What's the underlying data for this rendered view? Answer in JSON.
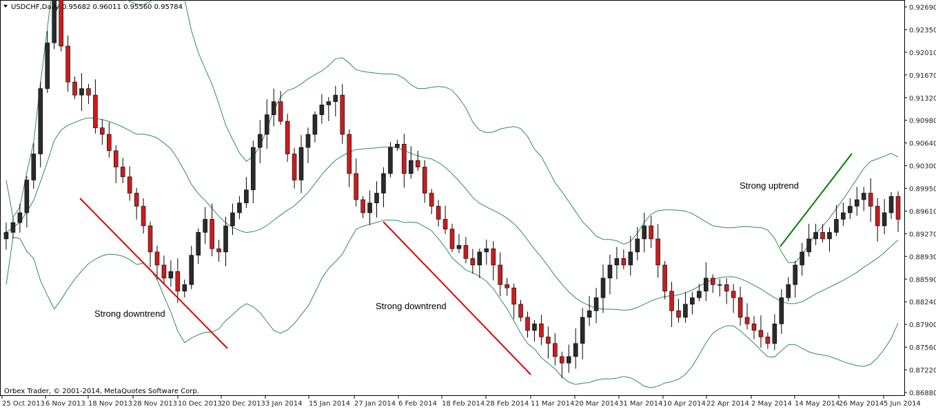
{
  "header": {
    "symbol": "USDCHF,Daily",
    "ohlc": "0.95682 0.96011 0.95560 0.95784"
  },
  "footer": {
    "copyright": "Orbex Trader, © 2001-2014, MetaQuotes Software Corp."
  },
  "chart_data": {
    "type": "candlestick",
    "ylim": [
      0.8685,
      0.9275
    ],
    "y_ticks": [
      "0.92690",
      "0.92350",
      "0.92010",
      "0.91670",
      "0.91320",
      "0.90980",
      "0.90640",
      "0.90300",
      "0.89950",
      "0.89610",
      "0.89270",
      "0.88930",
      "0.88590",
      "0.88240",
      "0.87900",
      "0.87560",
      "0.87220",
      "0.86880"
    ],
    "x_ticks": [
      "25 Oct 2013",
      "6 Nov 2013",
      "18 Nov 2013",
      "28 Nov 2013",
      "10 Dec 2013",
      "20 Dec 2013",
      "3 Jan 2014",
      "15 Jan 2014",
      "27 Jan 2014",
      "6 Feb 2014",
      "18 Feb 2014",
      "28 Feb 2014",
      "11 Mar 2014",
      "20 Mar 2014",
      "31 Mar 2014",
      "10 Apr 2014",
      "22 Apr 2014",
      "2 May 2014",
      "14 May 2014",
      "26 May 2014",
      "5 Jun 2014"
    ],
    "up_color": "#2b2b2b",
    "down_color": "#c81e1e",
    "band_color": "#2e8b57",
    "close_path": [
      0.893,
      0.8945,
      0.896,
      0.901,
      0.905,
      0.915,
      0.922,
      0.93,
      0.9215,
      0.916,
      0.914,
      0.915,
      0.914,
      0.909,
      0.908,
      0.9055,
      0.903,
      0.9015,
      0.899,
      0.897,
      0.894,
      0.89,
      0.888,
      0.886,
      0.887,
      0.884,
      0.885,
      0.8895,
      0.893,
      0.895,
      0.8905,
      0.89,
      0.894,
      0.896,
      0.8975,
      0.8995,
      0.906,
      0.908,
      0.911,
      0.913,
      0.91,
      0.905,
      0.901,
      0.906,
      0.908,
      0.911,
      0.9125,
      0.913,
      0.914,
      0.908,
      0.902,
      0.898,
      0.896,
      0.8975,
      0.899,
      0.902,
      0.906,
      0.9065,
      0.902,
      0.904,
      0.903,
      0.899,
      0.897,
      0.895,
      0.8935,
      0.8905,
      0.891,
      0.889,
      0.888,
      0.89,
      0.8905,
      0.888,
      0.885,
      0.8845,
      0.882,
      0.88,
      0.878,
      0.879,
      0.877,
      0.876,
      0.874,
      0.873,
      0.874,
      0.876,
      0.88,
      0.881,
      0.883,
      0.886,
      0.888,
      0.889,
      0.888,
      0.89,
      0.892,
      0.894,
      0.892,
      0.888,
      0.884,
      0.881,
      0.88,
      0.882,
      0.883,
      0.884,
      0.886,
      0.885,
      0.885,
      0.884,
      0.883,
      0.88,
      0.879,
      0.878,
      0.877,
      0.876,
      0.879,
      0.883,
      0.885,
      0.888,
      0.89,
      0.892,
      0.893,
      0.892,
      0.893,
      0.895,
      0.896,
      0.897,
      0.898,
      0.899,
      0.897,
      0.894,
      0.896,
      0.8985,
      0.895
    ]
  },
  "annotations": [
    {
      "label": "Strong downtrend"
    },
    {
      "label": "Strong downtrend"
    },
    {
      "label": "Strong uptrend"
    }
  ]
}
